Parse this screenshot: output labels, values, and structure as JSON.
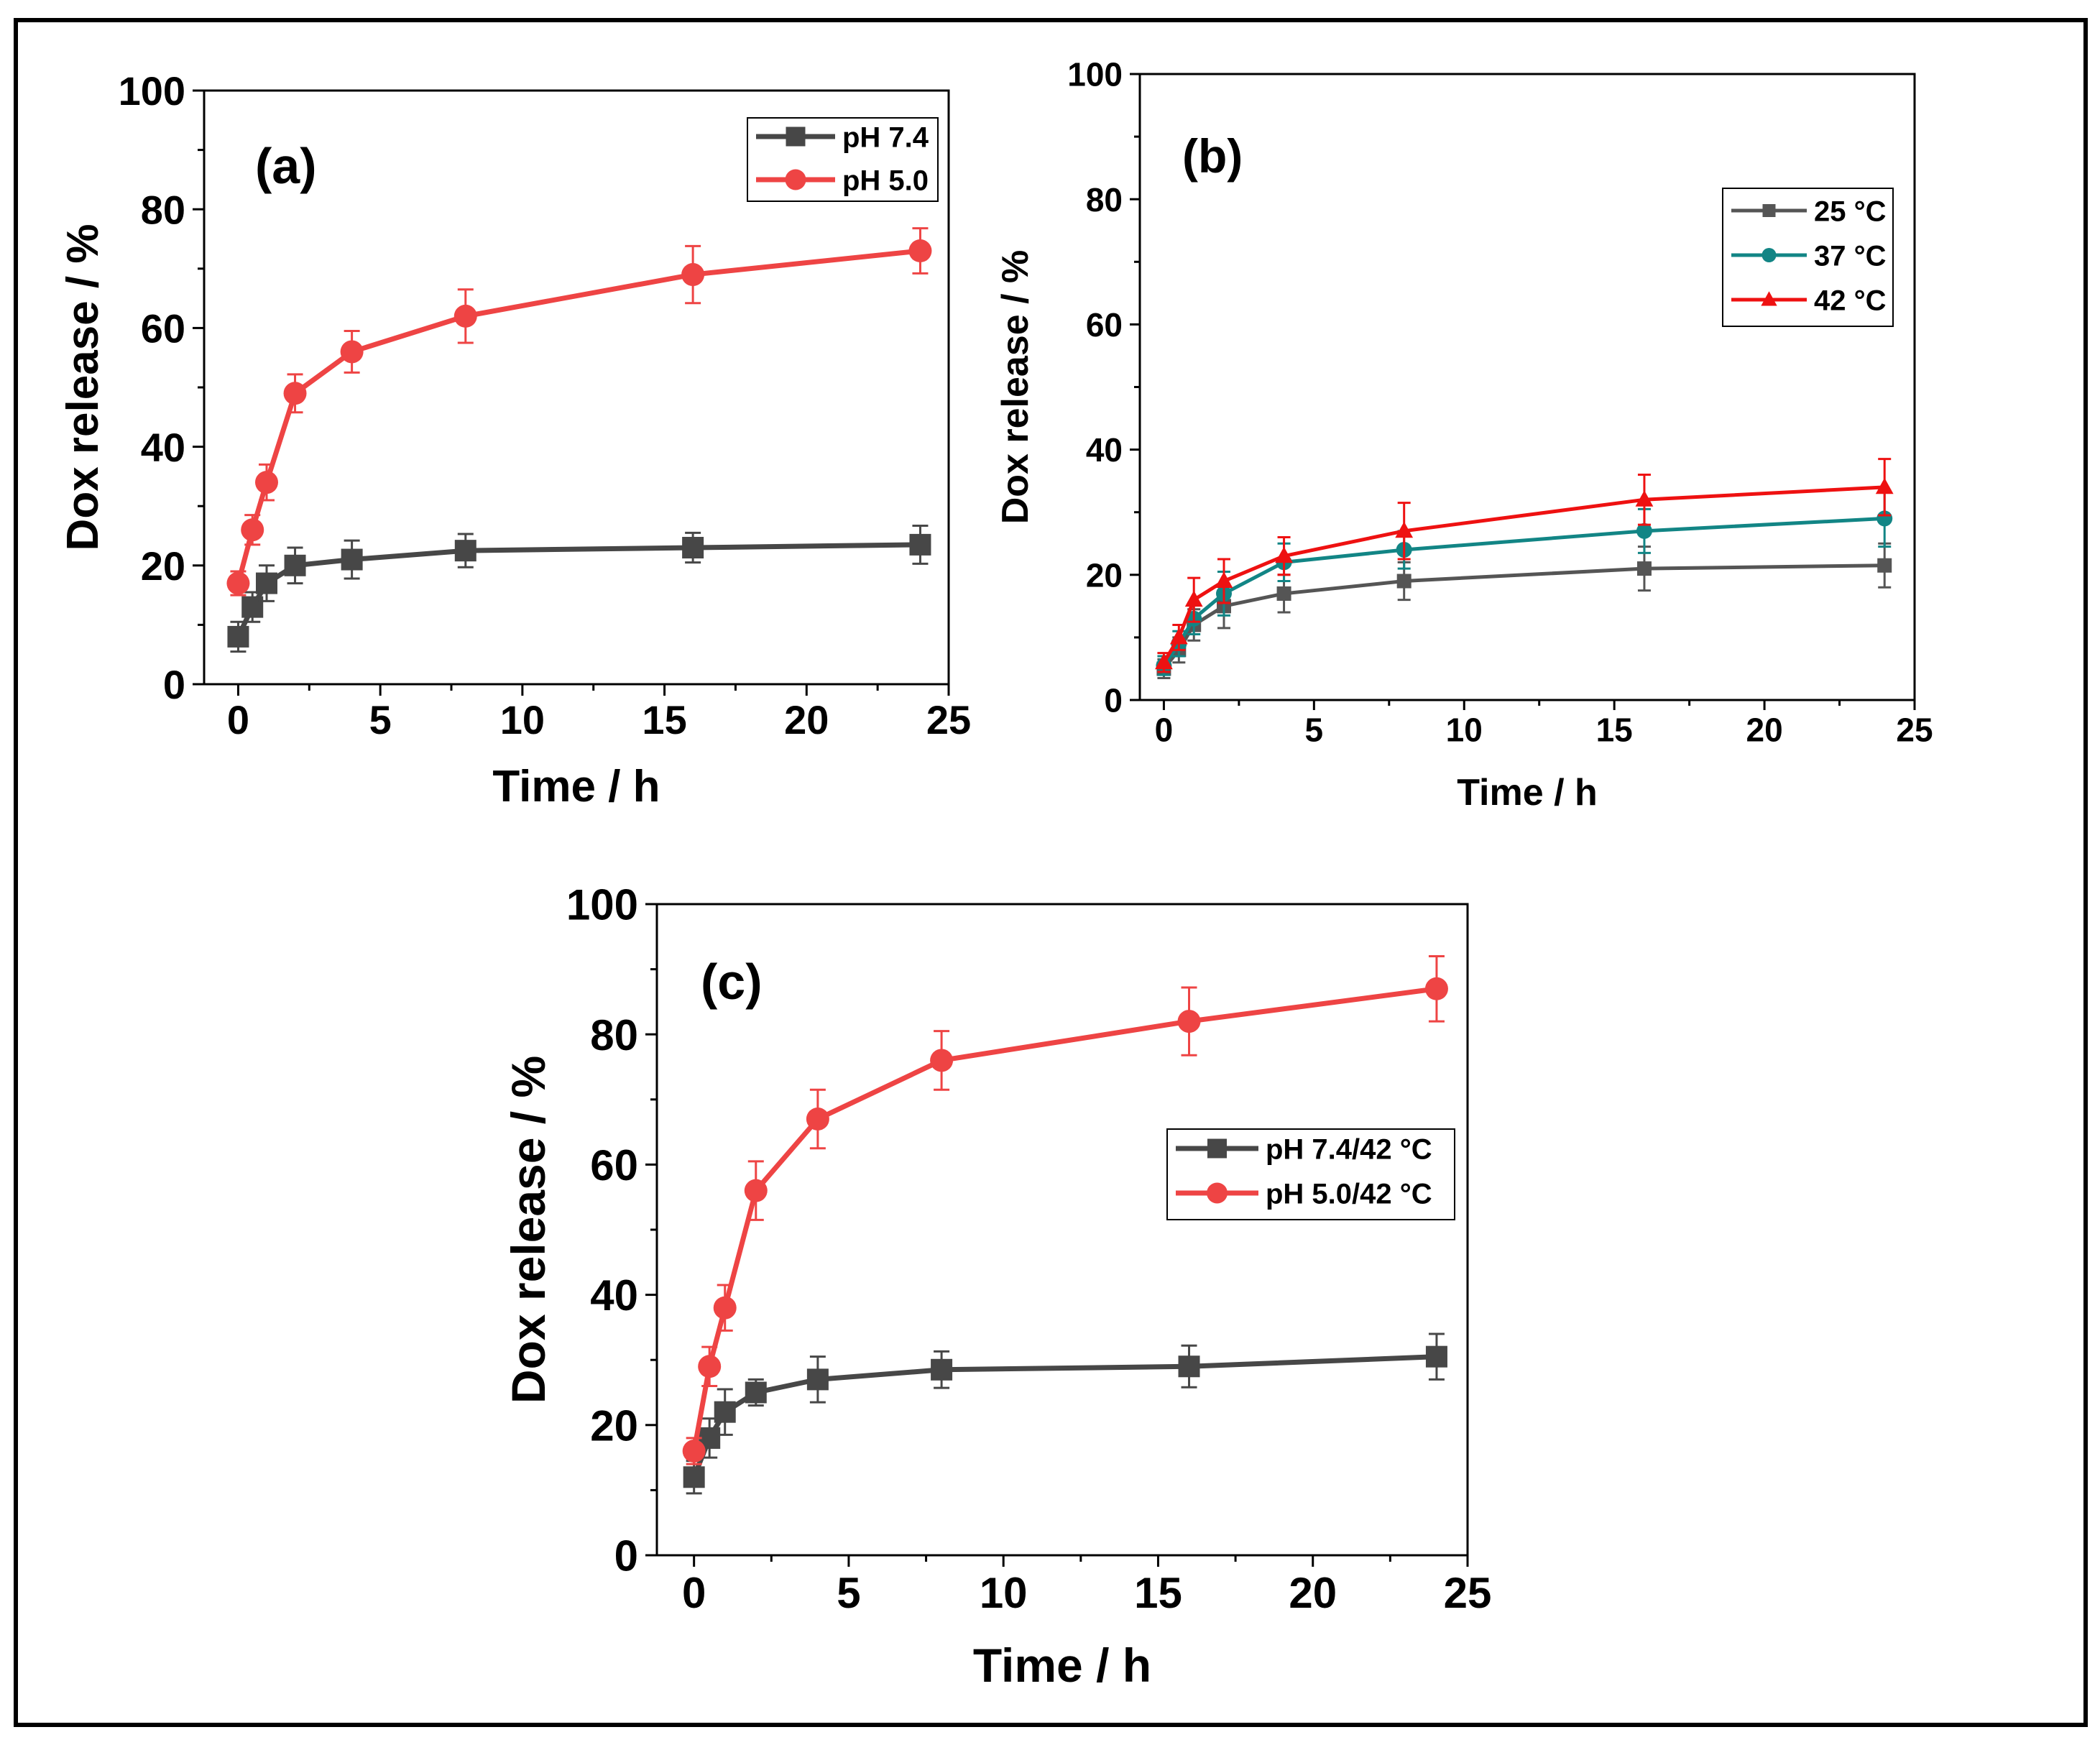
{
  "figure": {
    "description_id": "dox-release-panels"
  },
  "chart_data": [
    {
      "panel": "a",
      "type": "line",
      "panel_label": "(a)",
      "xlabel": "Time / h",
      "ylabel": "Dox release / %",
      "xlim": [
        -1.2,
        25
      ],
      "ylim": [
        0,
        100
      ],
      "xticks": [
        0,
        5,
        10,
        15,
        20,
        25
      ],
      "yticks": [
        0,
        20,
        40,
        60,
        80,
        100
      ],
      "legend_position": "top-right",
      "series": [
        {
          "name": "pH 7.4",
          "color": "#474747",
          "marker": "square",
          "x": [
            0,
            0.5,
            1,
            2,
            4,
            8,
            16,
            24
          ],
          "y": [
            8,
            13,
            17,
            20,
            21,
            22.5,
            23,
            23.5
          ],
          "err": [
            2.5,
            2.5,
            3,
            3,
            3.2,
            2.8,
            2.5,
            3.2
          ]
        },
        {
          "name": "pH 5.0",
          "color": "#ee4444",
          "marker": "circle",
          "x": [
            0,
            0.5,
            1,
            2,
            4,
            8,
            16,
            24
          ],
          "y": [
            17,
            26,
            34,
            49,
            56,
            62,
            69,
            73
          ],
          "err": [
            2,
            2.5,
            3,
            3.2,
            3.5,
            4.5,
            4.8,
            3.8
          ]
        }
      ]
    },
    {
      "panel": "b",
      "type": "line",
      "panel_label": "(b)",
      "xlabel": "Time / h",
      "ylabel": "Dox release / %",
      "xlim": [
        -0.8,
        25
      ],
      "ylim": [
        0,
        100
      ],
      "xticks": [
        0,
        5,
        10,
        15,
        20,
        25
      ],
      "yticks": [
        0,
        20,
        40,
        60,
        80,
        100
      ],
      "legend_position": "center-right",
      "series": [
        {
          "name": "25 °C",
          "color": "#555555",
          "marker": "square",
          "x": [
            0,
            0.5,
            1,
            2,
            4,
            8,
            16,
            24
          ],
          "y": [
            5,
            8,
            12,
            15,
            17,
            19,
            21,
            21.5
          ],
          "err": [
            1.5,
            2,
            2.5,
            3.5,
            3,
            3,
            3.5,
            3.5
          ]
        },
        {
          "name": "37 °C",
          "color": "#128585",
          "marker": "circle",
          "x": [
            0,
            0.5,
            1,
            2,
            4,
            8,
            16,
            24
          ],
          "y": [
            5.5,
            9,
            13,
            17,
            22,
            24,
            27,
            29
          ],
          "err": [
            1.5,
            2,
            2.5,
            3.5,
            3,
            3,
            3.5,
            4.5
          ]
        },
        {
          "name": "42 °C",
          "color": "#ee1111",
          "marker": "triangle",
          "x": [
            0,
            0.5,
            1,
            2,
            4,
            8,
            16,
            24
          ],
          "y": [
            6,
            10,
            16,
            19,
            23,
            27,
            32,
            34
          ],
          "err": [
            1.5,
            2,
            3.5,
            3.5,
            3,
            4.5,
            4,
            4.5
          ]
        }
      ]
    },
    {
      "panel": "c",
      "type": "line",
      "panel_label": "(c)",
      "xlabel": "Time / h",
      "ylabel": "Dox release / %",
      "xlim": [
        -1.2,
        25
      ],
      "ylim": [
        0,
        100
      ],
      "xticks": [
        0,
        5,
        10,
        15,
        20,
        25
      ],
      "yticks": [
        0,
        20,
        40,
        60,
        80,
        100
      ],
      "legend_position": "center-right",
      "series": [
        {
          "name": "pH 7.4/42 °C",
          "color": "#474747",
          "marker": "square",
          "x": [
            0,
            0.5,
            1,
            2,
            4,
            8,
            16,
            24
          ],
          "y": [
            12,
            18,
            22,
            25,
            27,
            28.5,
            29,
            30.5
          ],
          "err": [
            2.5,
            3,
            3.5,
            2,
            3.5,
            2.8,
            3.2,
            3.5
          ]
        },
        {
          "name": "pH 5.0/42 °C",
          "color": "#ee4444",
          "marker": "circle",
          "x": [
            0,
            0.5,
            1,
            2,
            4,
            8,
            16,
            24
          ],
          "y": [
            16,
            29,
            38,
            56,
            67,
            76,
            82,
            87
          ],
          "err": [
            2,
            3,
            3.5,
            4.5,
            4.5,
            4.5,
            5.2,
            5
          ]
        }
      ]
    }
  ]
}
